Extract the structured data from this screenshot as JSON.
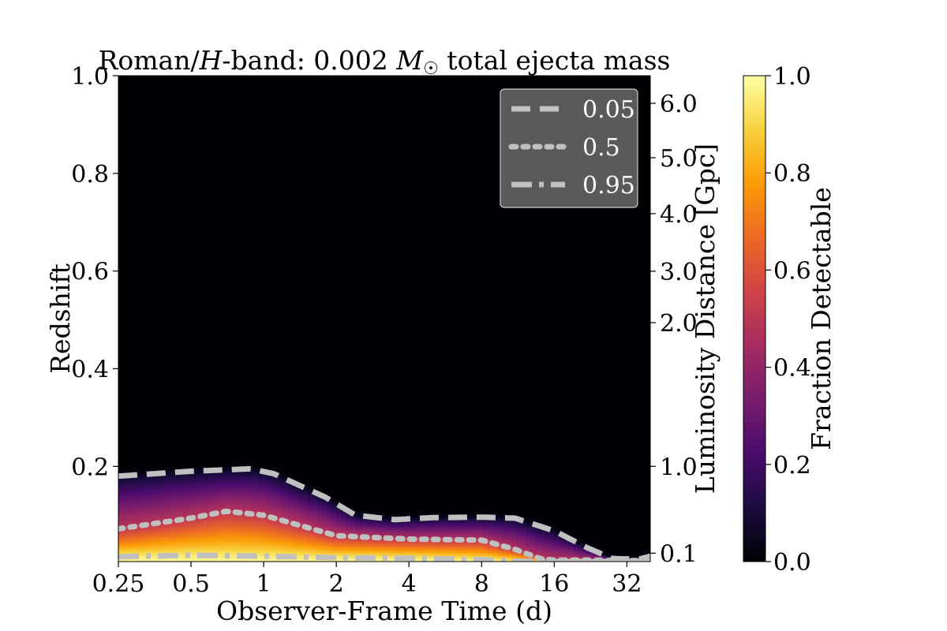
{
  "chart_data": {
    "type": "heatmap",
    "title": "Roman/H-band: 0.002 M☉ total ejecta mass",
    "title_parts": {
      "prefix": "Roman/",
      "band": "H",
      "middle": "-band: 0.002 ",
      "mass": "M",
      "sun": "☉",
      "suffix": " total ejecta mass"
    },
    "xlabel": "Observer-Frame Time (d)",
    "ylabel": "Redshift",
    "y2label": "Luminosity Distance [Gpc]",
    "colorbar_label": "Fraction Detectable",
    "x_scale": "log2",
    "xlim": [
      0.25,
      40
    ],
    "ylim": [
      0.005,
      1.0
    ],
    "x_ticks": [
      0.25,
      0.5,
      1,
      2,
      4,
      8,
      16,
      32
    ],
    "x_tick_labels": [
      "0.25",
      "0.5",
      "1",
      "2",
      "4",
      "8",
      "16",
      "32"
    ],
    "y_ticks": [
      0.2,
      0.4,
      0.6,
      0.8,
      1.0
    ],
    "y_tick_labels": [
      "0.2",
      "0.4",
      "0.6",
      "0.8",
      "1.0"
    ],
    "y2_ticks_redshift": [
      0.0223,
      0.2,
      0.4943,
      0.5996,
      0.7175,
      0.8321,
      0.9435
    ],
    "y2_tick_labels": [
      "0.1",
      "1.0",
      "2.0",
      "3.0",
      "4.0",
      "5.0",
      "6.0"
    ],
    "colorbar_ticks": [
      0.0,
      0.2,
      0.4,
      0.6,
      0.8,
      1.0
    ],
    "colorbar_tick_labels": [
      "0.0",
      "0.2",
      "0.4",
      "0.6",
      "0.8",
      "1.0"
    ],
    "colormap": [
      "#000004",
      "#1b0c41",
      "#4a0c6b",
      "#781c6d",
      "#a52c60",
      "#cf4446",
      "#ed6925",
      "#fb9b06",
      "#f7d13d",
      "#fcffa4"
    ],
    "contour_color": "#c0c0c0",
    "contours": [
      {
        "level": "0.05",
        "style": "dashed",
        "x": [
          0.25,
          0.5,
          0.88,
          1.1,
          1.8,
          2.4,
          3.5,
          5,
          8,
          11,
          16,
          22,
          28,
          36,
          40
        ],
        "y": [
          0.18,
          0.19,
          0.195,
          0.185,
          0.137,
          0.1,
          0.091,
          0.095,
          0.096,
          0.094,
          0.068,
          0.033,
          0.011,
          0.01,
          0.016
        ]
      },
      {
        "level": "0.5",
        "style": "dotted",
        "x": [
          0.25,
          0.5,
          0.7,
          1,
          2,
          4,
          8,
          11,
          14,
          16,
          22,
          32,
          40
        ],
        "y": [
          0.072,
          0.094,
          0.108,
          0.1,
          0.058,
          0.051,
          0.049,
          0.03,
          0.011,
          0.008,
          0.008,
          0.007,
          0.007
        ]
      },
      {
        "level": "0.95",
        "style": "dashdot",
        "x": [
          0.25,
          0.5,
          1,
          2,
          4,
          8,
          11,
          16,
          32,
          40
        ],
        "y": [
          0.015,
          0.018,
          0.016,
          0.013,
          0.012,
          0.009,
          0.006,
          0.005,
          0.005,
          0.005
        ]
      }
    ],
    "legend": {
      "position": "top-right",
      "entries": [
        {
          "label": "0.05",
          "style": "dashed"
        },
        {
          "label": "0.5",
          "style": "dotted"
        },
        {
          "label": "0.95",
          "style": "dashdot"
        }
      ]
    }
  }
}
